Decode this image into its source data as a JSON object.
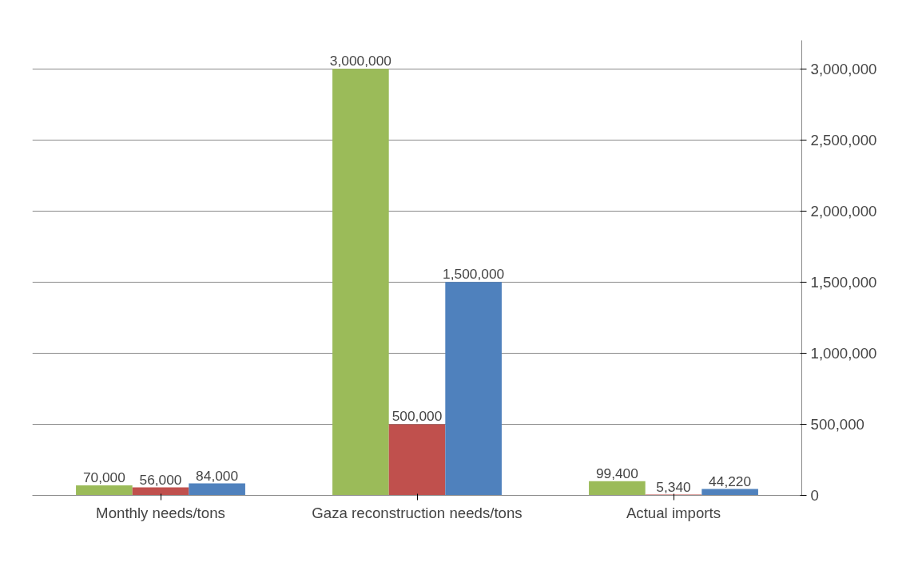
{
  "chart_data": {
    "type": "bar",
    "categories": [
      "Monthly needs/tons",
      "Gaza reconstruction needs/tons",
      "Actual imports"
    ],
    "series": [
      {
        "color": "#9bbb59",
        "values": [
          70000,
          3000000,
          99400
        ],
        "value_labels": [
          "70,000",
          "3,000,000",
          "99,400"
        ]
      },
      {
        "color": "#c0504d",
        "values": [
          56000,
          500000,
          5340
        ],
        "value_labels": [
          "56,000",
          "500,000",
          "5,340"
        ]
      },
      {
        "color": "#4f81bd",
        "values": [
          84000,
          1500000,
          44220
        ],
        "value_labels": [
          "84,000",
          "1,500,000",
          "44,220"
        ]
      }
    ],
    "ylim": [
      0,
      3200000
    ],
    "yticks": [
      0,
      {
        "value": 500000,
        "label": "500,000"
      },
      {
        "value": 1000000,
        "label": "1,000,000"
      },
      {
        "value": 1500000,
        "label": "1,500,000"
      },
      {
        "value": 2000000,
        "label": "2,000,000"
      },
      {
        "value": 2500000,
        "label": "2,500,000"
      },
      {
        "value": 3000000,
        "label": "3,000,000"
      }
    ],
    "grid": "y"
  }
}
